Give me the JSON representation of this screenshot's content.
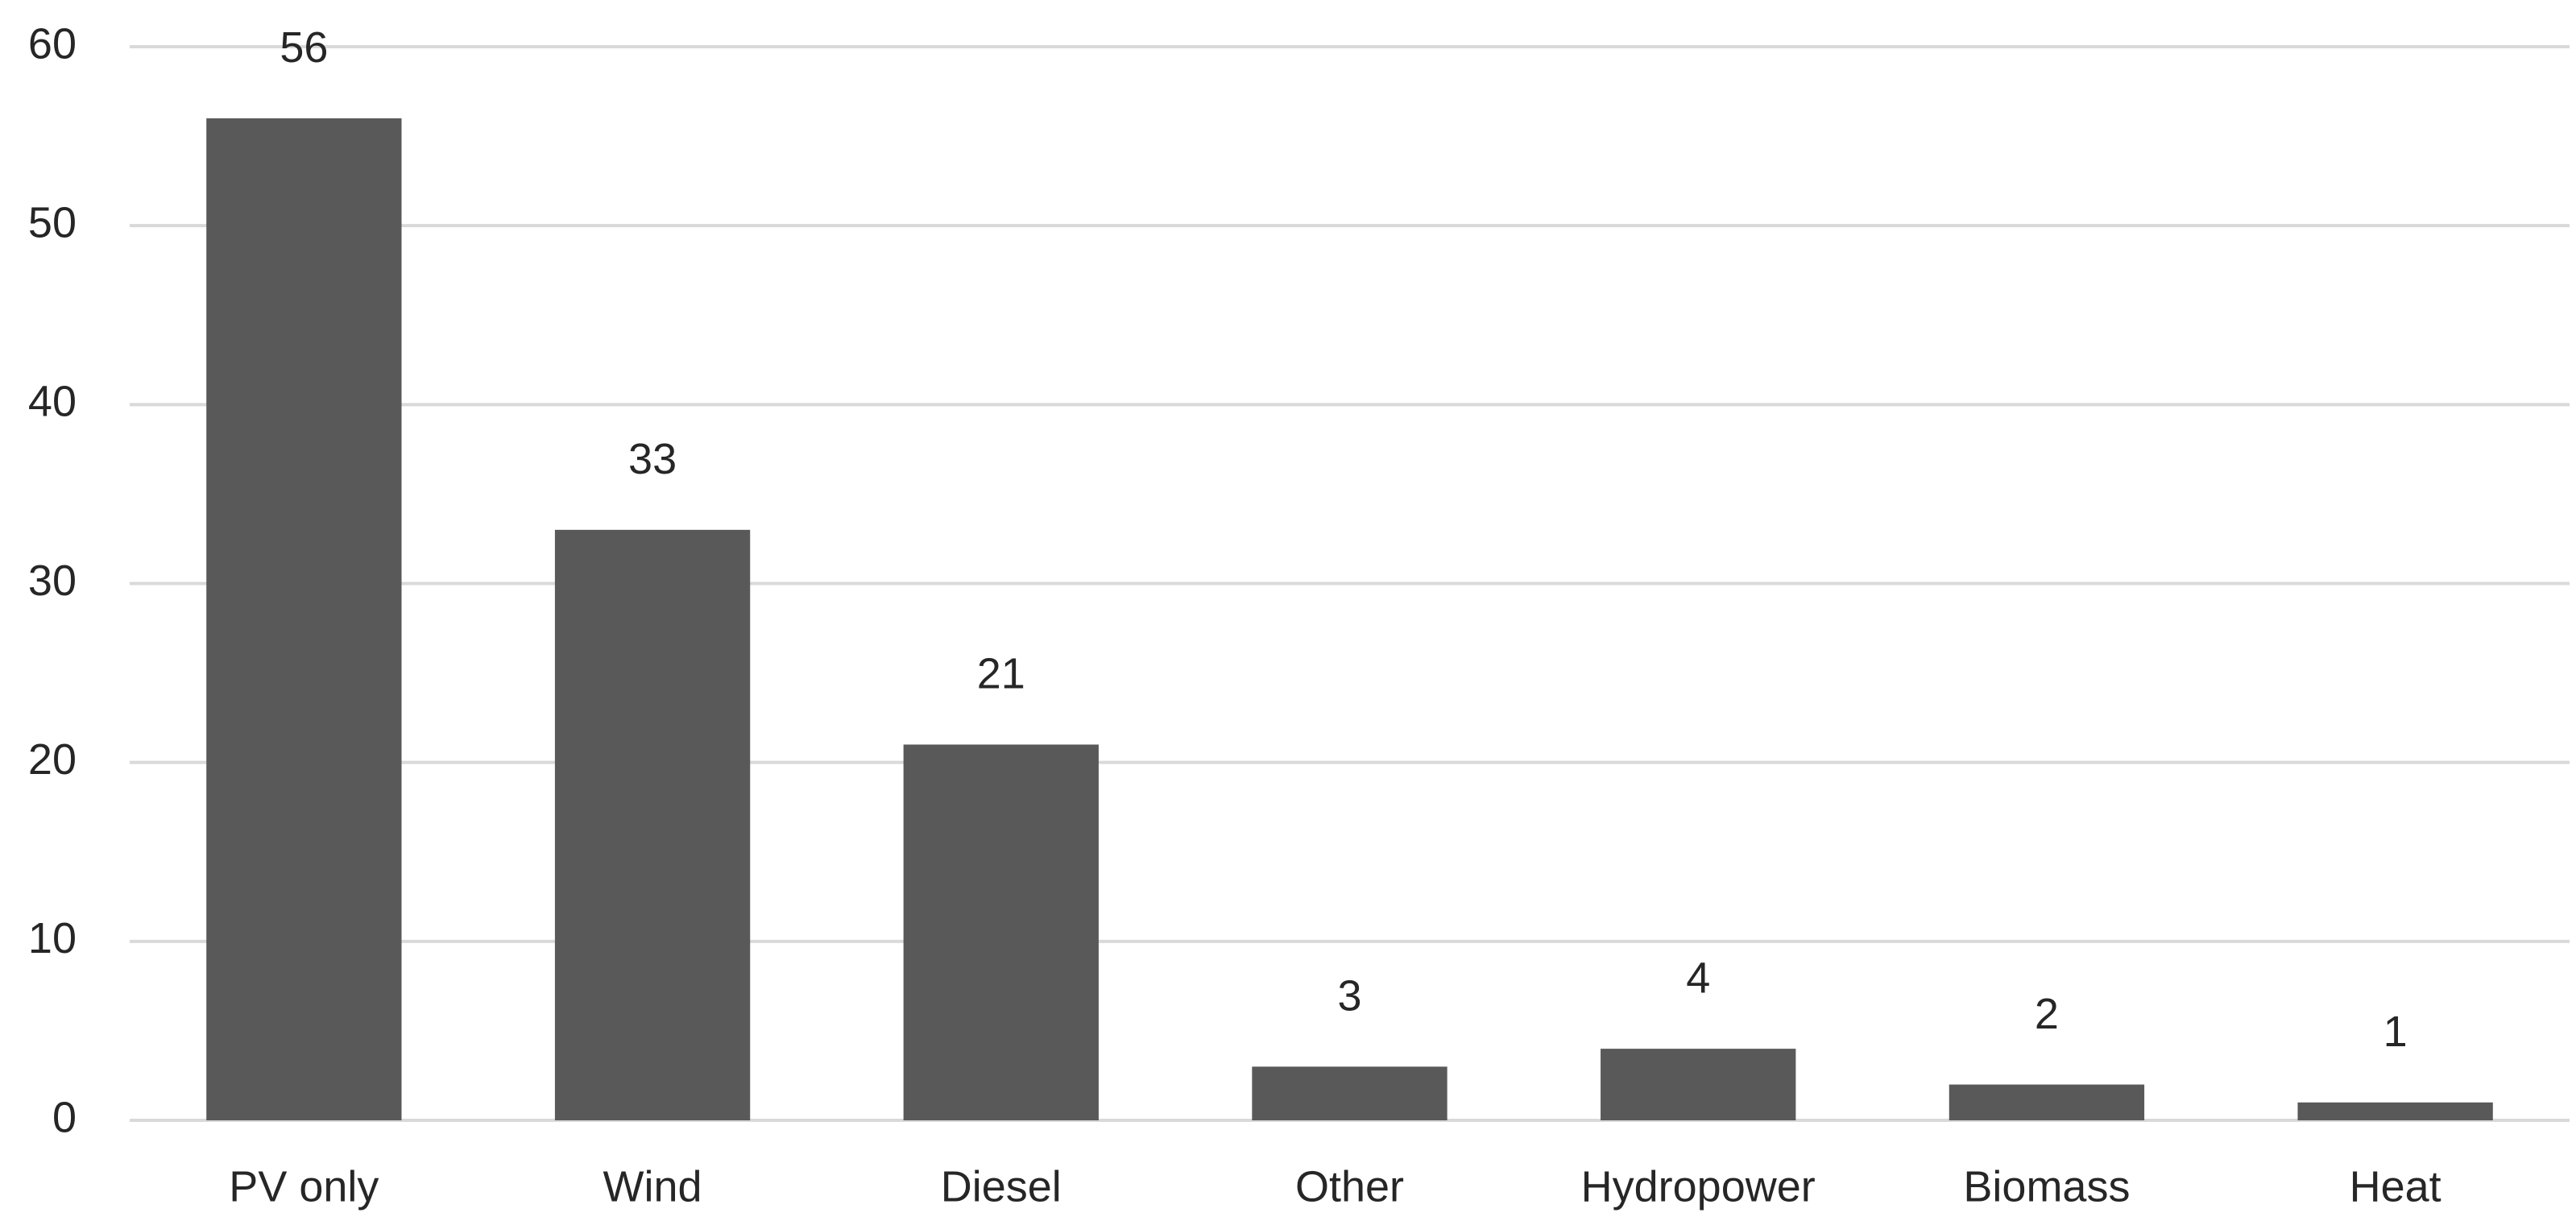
{
  "chart_data": {
    "type": "bar",
    "categories": [
      "PV only",
      "Wind",
      "Diesel",
      "Other",
      "Hydropower",
      "Biomass",
      "Heat"
    ],
    "values": [
      56,
      33,
      21,
      3,
      4,
      2,
      1
    ],
    "color": "#595959",
    "ylim": [
      0,
      60
    ],
    "yticks": [
      0,
      10,
      20,
      30,
      40,
      50,
      60
    ],
    "grid": true
  }
}
